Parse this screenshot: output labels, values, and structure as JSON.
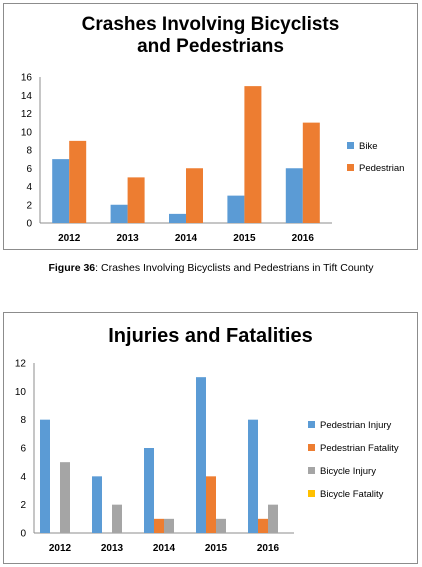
{
  "chart_data": [
    {
      "type": "bar",
      "title": "Crashes Involving Bicyclists and Pedestrians",
      "categories": [
        "2012",
        "2013",
        "2014",
        "2015",
        "2016"
      ],
      "series": [
        {
          "name": "Bike",
          "color": "#5b9bd5",
          "values": [
            7,
            2,
            1,
            3,
            6
          ]
        },
        {
          "name": "Pedestrian",
          "color": "#ed7d31",
          "values": [
            9,
            5,
            6,
            15,
            11
          ]
        }
      ],
      "yticks": [
        "0",
        "2",
        "4",
        "6",
        "8",
        "10",
        "12",
        "14",
        "16"
      ],
      "ylim": [
        0,
        16
      ],
      "grid": false,
      "legend": "right"
    },
    {
      "type": "bar",
      "title": "Injuries and Fatalities",
      "categories": [
        "2012",
        "2013",
        "2014",
        "2015",
        "2016"
      ],
      "series": [
        {
          "name": "Pedestrian Injury",
          "color": "#5b9bd5",
          "values": [
            8,
            4,
            6,
            11,
            8
          ]
        },
        {
          "name": "Pedestrian Fatality",
          "color": "#ed7d31",
          "values": [
            0,
            0,
            1,
            4,
            1
          ]
        },
        {
          "name": "Bicycle Injury",
          "color": "#a5a5a5",
          "values": [
            5,
            2,
            1,
            1,
            2
          ]
        },
        {
          "name": "Bicycle Fatality",
          "color": "#ffc000",
          "values": [
            0,
            0,
            0,
            0,
            0
          ]
        }
      ],
      "yticks": [
        "0",
        "2",
        "4",
        "6",
        "8",
        "10",
        "12"
      ],
      "ylim": [
        0,
        12
      ],
      "grid": false,
      "legend": "right"
    }
  ],
  "caption": {
    "label": "Figure 36",
    "text": ": Crashes Involving Bicyclists and Pedestrians in Tift County"
  }
}
